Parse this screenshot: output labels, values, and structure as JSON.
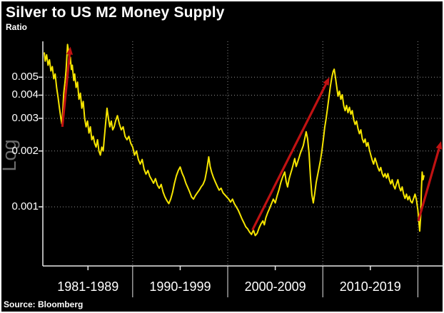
{
  "chart_data": {
    "type": "line",
    "title": "Silver to US M2 Money Supply",
    "subtitle": "Ratio",
    "source_note": "Source: Bloomberg",
    "legend": "none",
    "grid": "dotted",
    "y_axis": {
      "scale": "log",
      "scale_label": "Log",
      "range": [
        0.00048,
        0.0078
      ],
      "ticks": [
        {
          "value": 0.005,
          "label": "0.005"
        },
        {
          "value": 0.004,
          "label": "0.004"
        },
        {
          "value": 0.003,
          "label": "0.003"
        },
        {
          "value": 0.002,
          "label": "0.002"
        },
        {
          "value": 0.001,
          "label": "0.001"
        }
      ]
    },
    "x_axis": {
      "range_years": [
        1980.55,
        2022.6
      ],
      "boundary_tick_years": [
        1990,
        2000,
        2010,
        2020
      ],
      "categories": [
        {
          "label": "1981-1989",
          "center_year": 1985.3
        },
        {
          "label": "1990-1999",
          "center_year": 1995.0
        },
        {
          "label": "2000-2009",
          "center_year": 2005.0
        },
        {
          "label": "2010-2019",
          "center_year": 2015.0
        }
      ]
    },
    "colors": {
      "background": "#000000",
      "line": "#f6e500",
      "arrow": "#c01212",
      "axis": "#e8e8e8",
      "grid": "#8f8f8f",
      "text": "#ffffff",
      "log_label": "#6e6e6e"
    },
    "trend_arrows": [
      {
        "from_year": 1982.6,
        "from_value": 0.0027,
        "to_year": 1983.45,
        "to_value": 0.0073
      },
      {
        "from_year": 2002.6,
        "from_value": 0.00075,
        "to_year": 2010.7,
        "to_value": 0.005
      },
      {
        "from_year": 2020.05,
        "from_value": 0.00084,
        "to_year": 2022.45,
        "to_value": 0.00226
      }
    ],
    "series": [
      {
        "name": "Silver to US M2 money supply ratio",
        "points": [
          [
            1980.7,
            0.0068
          ],
          [
            1980.8,
            0.0061
          ],
          [
            1980.95,
            0.0066
          ],
          [
            1981.1,
            0.0058
          ],
          [
            1981.25,
            0.0062
          ],
          [
            1981.4,
            0.0054
          ],
          [
            1981.55,
            0.0057
          ],
          [
            1981.7,
            0.0049
          ],
          [
            1981.85,
            0.0052
          ],
          [
            1982.0,
            0.0044
          ],
          [
            1982.15,
            0.0039
          ],
          [
            1982.3,
            0.0034
          ],
          [
            1982.45,
            0.003
          ],
          [
            1982.55,
            0.0028
          ],
          [
            1982.65,
            0.0033
          ],
          [
            1982.75,
            0.0041
          ],
          [
            1982.9,
            0.0048
          ],
          [
            1983.0,
            0.0055
          ],
          [
            1983.1,
            0.0068
          ],
          [
            1983.15,
            0.0075
          ],
          [
            1983.25,
            0.0069
          ],
          [
            1983.35,
            0.0059
          ],
          [
            1983.45,
            0.0064
          ],
          [
            1983.55,
            0.0055
          ],
          [
            1983.65,
            0.0058
          ],
          [
            1983.8,
            0.0048
          ],
          [
            1983.9,
            0.0052
          ],
          [
            1984.05,
            0.0044
          ],
          [
            1984.2,
            0.0047
          ],
          [
            1984.35,
            0.0038
          ],
          [
            1984.5,
            0.0041
          ],
          [
            1984.65,
            0.0034
          ],
          [
            1984.8,
            0.0037
          ],
          [
            1984.95,
            0.003
          ],
          [
            1985.1,
            0.0027
          ],
          [
            1985.25,
            0.0029
          ],
          [
            1985.4,
            0.0025
          ],
          [
            1985.55,
            0.0027
          ],
          [
            1985.7,
            0.0023
          ],
          [
            1985.85,
            0.0024
          ],
          [
            1986.0,
            0.0022
          ],
          [
            1986.15,
            0.0021
          ],
          [
            1986.3,
            0.0023
          ],
          [
            1986.45,
            0.002
          ],
          [
            1986.6,
            0.0019
          ],
          [
            1986.75,
            0.0021
          ],
          [
            1986.9,
            0.002
          ],
          [
            1987.0,
            0.0023
          ],
          [
            1987.15,
            0.0028
          ],
          [
            1987.3,
            0.0034
          ],
          [
            1987.45,
            0.003
          ],
          [
            1987.6,
            0.0027
          ],
          [
            1987.75,
            0.0029
          ],
          [
            1987.9,
            0.0026
          ],
          [
            1988.05,
            0.0027
          ],
          [
            1988.2,
            0.0029
          ],
          [
            1988.4,
            0.0031
          ],
          [
            1988.6,
            0.0028
          ],
          [
            1988.8,
            0.0026
          ],
          [
            1989.0,
            0.0027
          ],
          [
            1989.2,
            0.0024
          ],
          [
            1989.4,
            0.0023
          ],
          [
            1989.6,
            0.0024
          ],
          [
            1989.8,
            0.0022
          ],
          [
            1990.0,
            0.0021
          ],
          [
            1990.2,
            0.0019
          ],
          [
            1990.4,
            0.002
          ],
          [
            1990.6,
            0.0018
          ],
          [
            1990.8,
            0.0017
          ],
          [
            1991.0,
            0.0018
          ],
          [
            1991.2,
            0.0016
          ],
          [
            1991.4,
            0.0015
          ],
          [
            1991.6,
            0.00157
          ],
          [
            1991.8,
            0.00146
          ],
          [
            1992.0,
            0.0014
          ],
          [
            1992.2,
            0.00134
          ],
          [
            1992.4,
            0.00142
          ],
          [
            1992.6,
            0.00131
          ],
          [
            1992.8,
            0.00126
          ],
          [
            1993.0,
            0.00132
          ],
          [
            1993.2,
            0.0012
          ],
          [
            1993.4,
            0.00113
          ],
          [
            1993.6,
            0.00108
          ],
          [
            1993.8,
            0.00104
          ],
          [
            1994.0,
            0.0011
          ],
          [
            1994.2,
            0.0012
          ],
          [
            1994.4,
            0.00134
          ],
          [
            1994.6,
            0.00147
          ],
          [
            1994.8,
            0.00157
          ],
          [
            1995.0,
            0.00164
          ],
          [
            1995.2,
            0.00152
          ],
          [
            1995.4,
            0.00144
          ],
          [
            1995.6,
            0.00134
          ],
          [
            1995.8,
            0.00127
          ],
          [
            1996.0,
            0.0012
          ],
          [
            1996.2,
            0.00113
          ],
          [
            1996.4,
            0.0011
          ],
          [
            1996.6,
            0.00115
          ],
          [
            1996.8,
            0.00119
          ],
          [
            1997.0,
            0.00123
          ],
          [
            1997.2,
            0.00128
          ],
          [
            1997.4,
            0.00132
          ],
          [
            1997.6,
            0.0014
          ],
          [
            1997.8,
            0.00158
          ],
          [
            1998.0,
            0.00186
          ],
          [
            1998.15,
            0.00165
          ],
          [
            1998.3,
            0.00154
          ],
          [
            1998.5,
            0.00144
          ],
          [
            1998.7,
            0.00136
          ],
          [
            1998.9,
            0.00129
          ],
          [
            1999.1,
            0.00123
          ],
          [
            1999.3,
            0.00126
          ],
          [
            1999.5,
            0.00119
          ],
          [
            1999.7,
            0.00116
          ],
          [
            1999.9,
            0.00113
          ],
          [
            2000.1,
            0.0011
          ],
          [
            2000.3,
            0.00106
          ],
          [
            2000.5,
            0.0011
          ],
          [
            2000.7,
            0.00104
          ],
          [
            2000.9,
            0.001
          ],
          [
            2001.1,
            0.00096
          ],
          [
            2001.3,
            0.00091
          ],
          [
            2001.5,
            0.00086
          ],
          [
            2001.7,
            0.00082
          ],
          [
            2001.9,
            0.00078
          ],
          [
            2002.1,
            0.00076
          ],
          [
            2002.3,
            0.00073
          ],
          [
            2002.5,
            0.00071
          ],
          [
            2002.7,
            0.00075
          ],
          [
            2002.9,
            0.0007
          ],
          [
            2003.1,
            0.00072
          ],
          [
            2003.3,
            0.00077
          ],
          [
            2003.5,
            0.00081
          ],
          [
            2003.7,
            0.00084
          ],
          [
            2003.85,
            0.0008
          ],
          [
            2004.0,
            0.00087
          ],
          [
            2004.2,
            0.00093
          ],
          [
            2004.4,
            0.00098
          ],
          [
            2004.6,
            0.00104
          ],
          [
            2004.8,
            0.0011
          ],
          [
            2005.0,
            0.00105
          ],
          [
            2005.2,
            0.00115
          ],
          [
            2005.4,
            0.00124
          ],
          [
            2005.6,
            0.00136
          ],
          [
            2005.8,
            0.00146
          ],
          [
            2006.0,
            0.00154
          ],
          [
            2006.15,
            0.00137
          ],
          [
            2006.3,
            0.00128
          ],
          [
            2006.45,
            0.00141
          ],
          [
            2006.6,
            0.0015
          ],
          [
            2006.75,
            0.00159
          ],
          [
            2006.9,
            0.0017
          ],
          [
            2007.05,
            0.00182
          ],
          [
            2007.2,
            0.00165
          ],
          [
            2007.35,
            0.00174
          ],
          [
            2007.5,
            0.00184
          ],
          [
            2007.65,
            0.00195
          ],
          [
            2007.8,
            0.00204
          ],
          [
            2007.95,
            0.00214
          ],
          [
            2008.1,
            0.00233
          ],
          [
            2008.25,
            0.00254
          ],
          [
            2008.4,
            0.00233
          ],
          [
            2008.55,
            0.00195
          ],
          [
            2008.7,
            0.00145
          ],
          [
            2008.85,
            0.00116
          ],
          [
            2009.0,
            0.00105
          ],
          [
            2009.15,
            0.00118
          ],
          [
            2009.3,
            0.00135
          ],
          [
            2009.45,
            0.00148
          ],
          [
            2009.6,
            0.00162
          ],
          [
            2009.75,
            0.00178
          ],
          [
            2009.9,
            0.002
          ],
          [
            2010.05,
            0.0023
          ],
          [
            2010.2,
            0.00268
          ],
          [
            2010.35,
            0.003
          ],
          [
            2010.5,
            0.00342
          ],
          [
            2010.65,
            0.00392
          ],
          [
            2010.8,
            0.00448
          ],
          [
            2010.95,
            0.005
          ],
          [
            2011.1,
            0.00538
          ],
          [
            2011.2,
            0.00552
          ],
          [
            2011.3,
            0.00512
          ],
          [
            2011.45,
            0.0045
          ],
          [
            2011.6,
            0.00395
          ],
          [
            2011.75,
            0.0042
          ],
          [
            2011.9,
            0.0038
          ],
          [
            2012.05,
            0.00402
          ],
          [
            2012.2,
            0.00352
          ],
          [
            2012.35,
            0.0033
          ],
          [
            2012.5,
            0.00352
          ],
          [
            2012.65,
            0.00322
          ],
          [
            2012.8,
            0.00344
          ],
          [
            2012.95,
            0.00316
          ],
          [
            2013.1,
            0.0033
          ],
          [
            2013.25,
            0.00295
          ],
          [
            2013.4,
            0.00278
          ],
          [
            2013.55,
            0.0029
          ],
          [
            2013.7,
            0.00264
          ],
          [
            2013.85,
            0.00248
          ],
          [
            2014.0,
            0.0026
          ],
          [
            2014.15,
            0.00233
          ],
          [
            2014.3,
            0.00222
          ],
          [
            2014.45,
            0.00232
          ],
          [
            2014.6,
            0.00212
          ],
          [
            2014.75,
            0.00222
          ],
          [
            2014.9,
            0.00203
          ],
          [
            2015.05,
            0.0019
          ],
          [
            2015.2,
            0.00178
          ],
          [
            2015.35,
            0.0017
          ],
          [
            2015.5,
            0.00183
          ],
          [
            2015.65,
            0.00173
          ],
          [
            2015.8,
            0.00163
          ],
          [
            2015.95,
            0.00156
          ],
          [
            2016.1,
            0.00163
          ],
          [
            2016.25,
            0.00151
          ],
          [
            2016.4,
            0.00145
          ],
          [
            2016.55,
            0.00151
          ],
          [
            2016.7,
            0.00143
          ],
          [
            2016.85,
            0.00151
          ],
          [
            2017.0,
            0.0014
          ],
          [
            2017.15,
            0.00133
          ],
          [
            2017.3,
            0.0014
          ],
          [
            2017.45,
            0.0013
          ],
          [
            2017.6,
            0.00125
          ],
          [
            2017.75,
            0.00133
          ],
          [
            2017.9,
            0.0014
          ],
          [
            2018.05,
            0.00128
          ],
          [
            2018.2,
            0.00122
          ],
          [
            2018.35,
            0.00128
          ],
          [
            2018.5,
            0.00117
          ],
          [
            2018.65,
            0.00111
          ],
          [
            2018.8,
            0.00117
          ],
          [
            2018.95,
            0.00109
          ],
          [
            2019.1,
            0.00114
          ],
          [
            2019.25,
            0.00107
          ],
          [
            2019.4,
            0.00105
          ],
          [
            2019.55,
            0.00111
          ],
          [
            2019.7,
            0.00117
          ],
          [
            2019.85,
            0.00109
          ],
          [
            2020.0,
            0.00096
          ],
          [
            2020.1,
            0.00084
          ],
          [
            2020.2,
            0.00074
          ],
          [
            2020.3,
            0.0009
          ],
          [
            2020.38,
            0.00125
          ],
          [
            2020.45,
            0.00154
          ],
          [
            2020.55,
            0.0014
          ],
          [
            2020.65,
            0.00148
          ]
        ]
      }
    ]
  }
}
